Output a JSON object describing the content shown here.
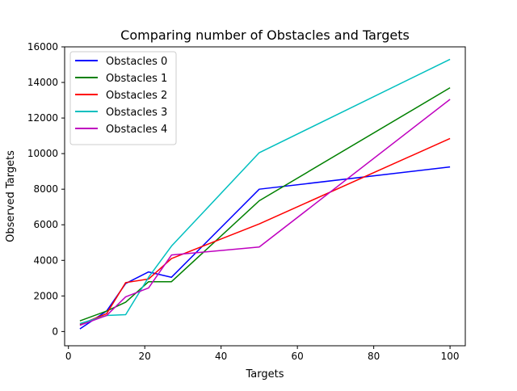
{
  "chart_data": {
    "type": "line",
    "title": "Comparing number of Obstacles and Targets",
    "xlabel": "Targets",
    "ylabel": "Observed Targets",
    "xlim": [
      -1,
      104
    ],
    "ylim": [
      -800,
      16000
    ],
    "xticks": [
      0,
      20,
      40,
      60,
      80,
      100
    ],
    "xtick_labels": [
      "0",
      "20",
      "40",
      "60",
      "80",
      "100"
    ],
    "yticks": [
      0,
      2000,
      4000,
      6000,
      8000,
      10000,
      12000,
      14000,
      16000
    ],
    "ytick_labels": [
      "0",
      "2000",
      "4000",
      "6000",
      "8000",
      "10000",
      "12000",
      "14000",
      "16000"
    ],
    "grid": false,
    "legend_position": "top-left",
    "series": [
      {
        "name": "Obstacles 0",
        "color": "#0000ff",
        "x": [
          3,
          10,
          15,
          21,
          27,
          50,
          100
        ],
        "y": [
          150,
          1150,
          2700,
          3350,
          3050,
          8000,
          9250
        ]
      },
      {
        "name": "Obstacles 1",
        "color": "#008000",
        "x": [
          3,
          10,
          15,
          21,
          27,
          50,
          100
        ],
        "y": [
          600,
          1150,
          1650,
          2800,
          2800,
          7350,
          13700
        ]
      },
      {
        "name": "Obstacles 2",
        "color": "#ff0000",
        "x": [
          3,
          10,
          15,
          21,
          27,
          50,
          100
        ],
        "y": [
          400,
          1000,
          2750,
          2950,
          4100,
          6050,
          10850
        ]
      },
      {
        "name": "Obstacles 3",
        "color": "#00bfbf",
        "x": [
          3,
          10,
          15,
          21,
          27,
          50,
          100
        ],
        "y": [
          450,
          900,
          950,
          3050,
          4800,
          10050,
          15300
        ]
      },
      {
        "name": "Obstacles 4",
        "color": "#bf00bf",
        "x": [
          3,
          10,
          15,
          21,
          27,
          50,
          100
        ],
        "y": [
          350,
          900,
          1950,
          2450,
          4300,
          4750,
          13050
        ]
      }
    ]
  }
}
